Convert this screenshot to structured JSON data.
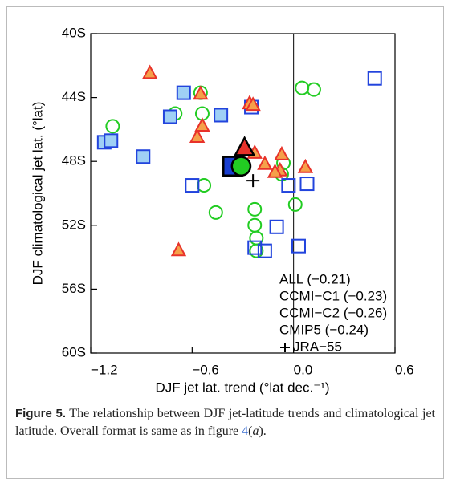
{
  "chart_data": {
    "type": "scatter",
    "xlabel": "DJF jet lat. trend (°lat dec.⁻¹)",
    "ylabel": "DJF climatological jet lat. (°lat)",
    "xlim": [
      -1.2,
      0.6
    ],
    "ylim": [
      -60,
      -40
    ],
    "xticks": [
      {
        "value": -1.2,
        "label": "−1.2"
      },
      {
        "value": -0.6,
        "label": "−0.6"
      },
      {
        "value": 0,
        "label": "0.0"
      },
      0.6
    ],
    "yticks": [
      {
        "value": -40,
        "label": "40S"
      },
      {
        "value": -44,
        "label": "44S"
      },
      {
        "value": -48,
        "label": "48S"
      },
      {
        "value": -52,
        "label": "52S"
      },
      {
        "value": -56,
        "label": "56S"
      },
      {
        "value": -60,
        "label": "60S"
      }
    ],
    "vline": 0,
    "series": [
      {
        "name": "CCMI−C1 (−0.23)",
        "marker": "circle",
        "color": "#22cc22",
        "fill": "none",
        "x": [
          -1.07,
          -0.7,
          -0.55,
          -0.54,
          0.05,
          0.12,
          -0.06,
          -0.07,
          0.01,
          -0.46,
          -0.53,
          -0.23,
          -0.23,
          -0.22,
          -0.22
        ],
        "y": [
          -45.8,
          -45.0,
          -43.7,
          -45.0,
          -43.4,
          -43.5,
          -48.1,
          -48.8,
          -50.7,
          -51.2,
          -49.5,
          -51.0,
          -52.0,
          -52.8,
          -53.6
        ]
      },
      {
        "name": "CCMI−C2 (−0.26)",
        "marker": "square",
        "color": "#2244dd",
        "fill": "#9fd0f5",
        "x": [
          -1.12,
          -1.08,
          -0.89,
          -0.65,
          -0.73,
          -0.25,
          -0.43,
          -0.6,
          -0.1,
          -0.23,
          -0.17,
          0.03,
          -0.03,
          0.08,
          0.48
        ],
        "y": [
          -46.8,
          -46.7,
          -47.7,
          -43.7,
          -45.2,
          -44.6,
          -45.1,
          -49.5,
          -52.1,
          -53.4,
          -53.6,
          -53.3,
          -49.5,
          -49.4,
          -42.8
        ]
      },
      {
        "name": "CMIP5 (−0.24)",
        "marker": "triangle",
        "color": "#e8322a",
        "fill": "#f5a04a",
        "x": [
          -0.85,
          -0.55,
          -0.26,
          -0.24,
          -0.57,
          -0.54,
          -0.23,
          -0.07,
          -0.17,
          -0.08,
          -0.11,
          0.07,
          -0.34,
          -0.36,
          -0.68
        ],
        "y": [
          -42.5,
          -43.8,
          -44.4,
          -44.5,
          -46.5,
          -45.8,
          -47.5,
          -47.6,
          -48.2,
          -48.6,
          -48.7,
          -48.4,
          -48.4,
          -48.3,
          -53.6
        ]
      },
      {
        "name": "ALL (−0.21)",
        "marker": "all",
        "color": "#000000",
        "fills": [
          "#1a3fd0",
          "#22cc22",
          "#e8322a"
        ],
        "shapes": [
          "square",
          "circle",
          "triangle"
        ],
        "x": [
          -0.36,
          -0.31,
          -0.29
        ],
        "y": [
          -48.3,
          -48.3,
          -47.2
        ]
      },
      {
        "name": "JRA−55",
        "marker": "plus",
        "color": "#000000",
        "x": [
          -0.24
        ],
        "y": [
          -49.2
        ]
      }
    ],
    "legend_order": [
      3,
      0,
      1,
      2,
      4
    ]
  },
  "caption": {
    "label": "Figure 5.",
    "text": "The relationship between DJF jet-latitude trends and climatological jet latitude. Overall format is same as in figure",
    "ref": "4",
    "open": "(",
    "italic": "a",
    "close": ")."
  }
}
